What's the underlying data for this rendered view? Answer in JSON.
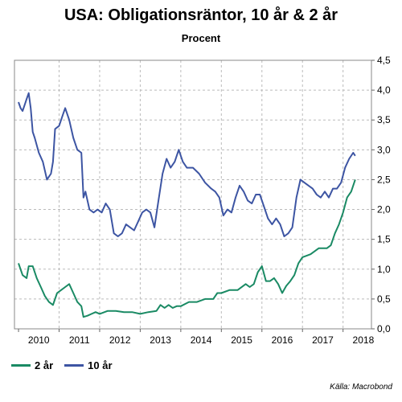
{
  "chart_data": {
    "type": "line",
    "title": "USA: Obligationsräntor, 10 år & 2 år",
    "subtitle": "Procent",
    "xlabel": "",
    "ylabel": "",
    "xlim": [
      2009.9,
      2018.7
    ],
    "ylim": [
      0,
      4.5
    ],
    "yticks": [
      "0,0",
      "0,5",
      "1,0",
      "1,5",
      "2,0",
      "2,5",
      "3,0",
      "3,5",
      "4,0",
      "4,5"
    ],
    "xticks": [
      "2010",
      "2011",
      "2012",
      "2013",
      "2014",
      "2015",
      "2016",
      "2017",
      "2018"
    ],
    "grid": true,
    "legend_position": "bottom-left",
    "series": [
      {
        "name": "2 år",
        "color": "#1a8a64",
        "x": [
          2010.0,
          2010.1,
          2010.2,
          2010.25,
          2010.35,
          2010.45,
          2010.55,
          2010.65,
          2010.75,
          2010.85,
          2010.95,
          2011.05,
          2011.15,
          2011.25,
          2011.35,
          2011.45,
          2011.55,
          2011.6,
          2011.7,
          2011.8,
          2011.9,
          2012.0,
          2012.2,
          2012.4,
          2012.6,
          2012.8,
          2013.0,
          2013.2,
          2013.4,
          2013.5,
          2013.6,
          2013.7,
          2013.8,
          2013.9,
          2014.0,
          2014.2,
          2014.4,
          2014.6,
          2014.8,
          2014.9,
          2015.0,
          2015.2,
          2015.4,
          2015.6,
          2015.7,
          2015.8,
          2015.9,
          2016.0,
          2016.1,
          2016.2,
          2016.3,
          2016.4,
          2016.5,
          2016.6,
          2016.7,
          2016.8,
          2016.9,
          2017.0,
          2017.2,
          2017.4,
          2017.5,
          2017.6,
          2017.7,
          2017.8,
          2017.9,
          2018.0,
          2018.1,
          2018.2,
          2018.3
        ],
        "values": [
          1.1,
          0.9,
          0.85,
          1.05,
          1.05,
          0.85,
          0.7,
          0.55,
          0.45,
          0.4,
          0.6,
          0.65,
          0.7,
          0.75,
          0.6,
          0.45,
          0.38,
          0.2,
          0.22,
          0.25,
          0.28,
          0.25,
          0.3,
          0.3,
          0.28,
          0.28,
          0.25,
          0.28,
          0.3,
          0.4,
          0.35,
          0.4,
          0.35,
          0.38,
          0.38,
          0.45,
          0.45,
          0.5,
          0.5,
          0.6,
          0.6,
          0.65,
          0.65,
          0.75,
          0.7,
          0.75,
          0.95,
          1.05,
          0.8,
          0.8,
          0.85,
          0.75,
          0.6,
          0.72,
          0.8,
          0.9,
          1.1,
          1.2,
          1.25,
          1.35,
          1.35,
          1.35,
          1.4,
          1.6,
          1.75,
          1.95,
          2.2,
          2.3,
          2.5
        ]
      },
      {
        "name": "10 år",
        "color": "#3d55a3",
        "x": [
          2010.0,
          2010.05,
          2010.1,
          2010.15,
          2010.2,
          2010.25,
          2010.3,
          2010.35,
          2010.4,
          2010.5,
          2010.6,
          2010.7,
          2010.75,
          2010.8,
          2010.85,
          2010.9,
          2011.0,
          2011.1,
          2011.15,
          2011.25,
          2011.35,
          2011.45,
          2011.55,
          2011.6,
          2011.65,
          2011.75,
          2011.85,
          2011.95,
          2012.05,
          2012.15,
          2012.25,
          2012.35,
          2012.45,
          2012.55,
          2012.65,
          2012.75,
          2012.85,
          2012.95,
          2013.05,
          2013.15,
          2013.25,
          2013.35,
          2013.45,
          2013.55,
          2013.65,
          2013.75,
          2013.85,
          2013.95,
          2014.05,
          2014.15,
          2014.3,
          2014.45,
          2014.6,
          2014.75,
          2014.85,
          2014.95,
          2015.05,
          2015.15,
          2015.25,
          2015.35,
          2015.45,
          2015.55,
          2015.65,
          2015.75,
          2015.85,
          2015.95,
          2016.05,
          2016.15,
          2016.25,
          2016.35,
          2016.45,
          2016.55,
          2016.65,
          2016.75,
          2016.85,
          2016.95,
          2017.05,
          2017.15,
          2017.25,
          2017.35,
          2017.45,
          2017.55,
          2017.65,
          2017.75,
          2017.85,
          2017.95,
          2018.05,
          2018.15,
          2018.25,
          2018.3
        ],
        "values": [
          3.8,
          3.7,
          3.65,
          3.75,
          3.85,
          3.95,
          3.7,
          3.3,
          3.2,
          2.95,
          2.8,
          2.5,
          2.55,
          2.6,
          2.8,
          3.35,
          3.4,
          3.6,
          3.7,
          3.5,
          3.2,
          3.0,
          2.95,
          2.2,
          2.3,
          2.0,
          1.95,
          2.0,
          1.95,
          2.1,
          2.0,
          1.6,
          1.55,
          1.6,
          1.75,
          1.7,
          1.65,
          1.8,
          1.95,
          2.0,
          1.95,
          1.7,
          2.15,
          2.6,
          2.85,
          2.7,
          2.8,
          3.0,
          2.8,
          2.7,
          2.7,
          2.6,
          2.45,
          2.35,
          2.3,
          2.2,
          1.9,
          2.0,
          1.95,
          2.2,
          2.4,
          2.3,
          2.15,
          2.1,
          2.25,
          2.25,
          2.05,
          1.85,
          1.75,
          1.85,
          1.75,
          1.55,
          1.6,
          1.7,
          2.2,
          2.5,
          2.45,
          2.4,
          2.35,
          2.25,
          2.2,
          2.3,
          2.2,
          2.35,
          2.35,
          2.45,
          2.7,
          2.85,
          2.95,
          2.9
        ]
      }
    ],
    "source": "Källa: Macrobond"
  }
}
